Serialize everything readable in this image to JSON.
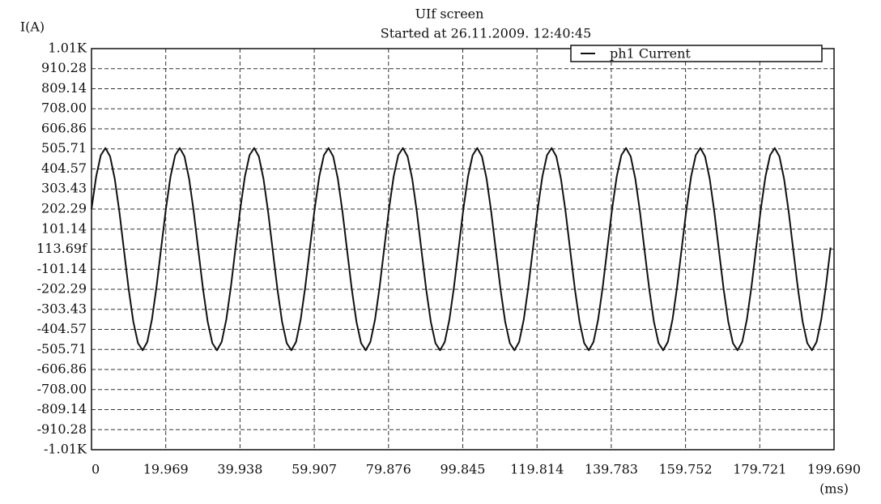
{
  "chart_data": {
    "type": "line",
    "title": "UIf screen",
    "subtitle": "Started at  26.11.2009.  12:40:45",
    "y_label": "I(A)",
    "x_label": "(ms)",
    "grid": true,
    "legend": "upper right",
    "xlim": [
      0,
      199.69
    ],
    "ylim": [
      -1011.4,
      1011.4
    ],
    "xticks": [
      0,
      19.969,
      39.938,
      59.907,
      79.876,
      99.845,
      119.814,
      139.783,
      159.752,
      179.721,
      {
        "value": 199.69,
        "label": "199.690"
      }
    ],
    "yticks": [
      {
        "value": 1011.4,
        "label": "1.01K"
      },
      910.28,
      809.14,
      {
        "value": 708,
        "label": "708.00"
      },
      606.86,
      505.71,
      404.57,
      303.43,
      202.29,
      101.14,
      {
        "value": 1.1369e-13,
        "label": "113.69f"
      },
      -101.14,
      -202.29,
      -303.43,
      -404.57,
      -505.71,
      -606.86,
      {
        "value": -708,
        "label": "-708.00"
      },
      -809.14,
      -910.28,
      {
        "value": -1011.4,
        "label": "-1.01K"
      }
    ],
    "x": [
      0,
      1.25,
      2.5,
      3.75,
      5,
      6.25,
      7.5,
      8.75,
      10,
      11.25,
      12.5,
      13.75,
      15,
      16.25,
      17.5,
      18.75,
      20,
      21.25,
      22.5,
      23.75,
      25,
      26.25,
      27.5,
      28.75,
      30,
      31.25,
      32.5,
      33.75,
      35,
      36.25,
      37.5,
      38.75,
      40,
      41.25,
      42.5,
      43.75,
      45,
      46.25,
      47.5,
      48.75,
      50,
      51.25,
      52.5,
      53.75,
      55,
      56.25,
      57.5,
      58.75,
      60,
      61.25,
      62.5,
      63.75,
      65,
      66.25,
      67.5,
      68.75,
      70,
      71.25,
      72.5,
      73.75,
      75,
      76.25,
      77.5,
      78.75,
      80,
      81.25,
      82.5,
      83.75,
      85,
      86.25,
      87.5,
      88.75,
      90,
      91.25,
      92.5,
      93.75,
      95,
      96.25,
      97.5,
      98.75,
      100,
      101.25,
      102.5,
      103.75,
      105,
      106.25,
      107.5,
      108.75,
      110,
      111.25,
      112.5,
      113.75,
      115,
      116.25,
      117.5,
      118.75,
      120,
      121.25,
      122.5,
      123.75,
      125,
      126.25,
      127.5,
      128.75,
      130,
      131.25,
      132.5,
      133.75,
      135,
      136.25,
      137.5,
      138.75,
      140,
      141.25,
      142.5,
      143.75,
      145,
      146.25,
      147.5,
      148.75,
      150,
      151.25,
      152.5,
      153.75,
      155,
      156.25,
      157.5,
      158.75,
      160,
      161.25,
      162.5,
      163.75,
      165,
      166.25,
      167.5,
      168.75,
      170,
      171.25,
      172.5,
      173.75,
      175,
      176.25,
      177.5,
      178.75,
      180,
      181.25,
      182.5,
      183.75,
      185,
      186.25,
      187.5,
      188.75,
      190,
      191.25,
      192.5,
      193.75,
      195,
      196.25,
      197.5,
      198.75
    ],
    "series": [
      {
        "name": "ph1 Current",
        "color": "#111111",
        "values": [
          202,
          366,
          474,
          510,
          468,
          355,
          188,
          -8,
          -202,
          -366,
          -474,
          -510,
          -468,
          -355,
          -188,
          8,
          202,
          366,
          474,
          510,
          468,
          355,
          188,
          -8,
          -202,
          -366,
          -474,
          -510,
          -468,
          -355,
          -188,
          8,
          202,
          366,
          474,
          510,
          468,
          355,
          188,
          -8,
          -202,
          -366,
          -474,
          -510,
          -468,
          -355,
          -188,
          8,
          202,
          366,
          474,
          510,
          468,
          355,
          188,
          -8,
          -202,
          -366,
          -474,
          -510,
          -468,
          -355,
          -188,
          8,
          202,
          366,
          474,
          510,
          468,
          355,
          188,
          -8,
          -202,
          -366,
          -474,
          -510,
          -468,
          -355,
          -188,
          8,
          202,
          366,
          474,
          510,
          468,
          355,
          188,
          -8,
          -202,
          -366,
          -474,
          -510,
          -468,
          -355,
          -188,
          8,
          202,
          366,
          474,
          510,
          468,
          355,
          188,
          -8,
          -202,
          -366,
          -474,
          -510,
          -468,
          -355,
          -188,
          8,
          202,
          366,
          474,
          510,
          468,
          355,
          188,
          -8,
          -202,
          -366,
          -474,
          -510,
          -468,
          -355,
          -188,
          8,
          202,
          366,
          474,
          510,
          468,
          355,
          188,
          -8,
          -202,
          -366,
          -474,
          -510,
          -468,
          -355,
          -188,
          8,
          202,
          366,
          474,
          510,
          468,
          355,
          188,
          -8,
          -202,
          -366,
          -474,
          -510,
          -468,
          -355,
          -188,
          8
        ]
      }
    ]
  }
}
